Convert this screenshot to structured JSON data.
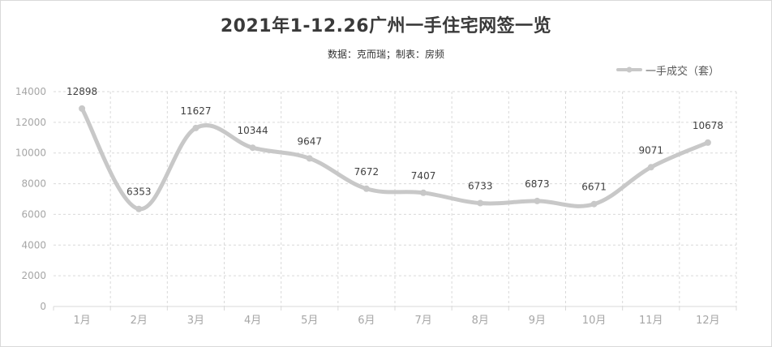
{
  "title": "2021年1-12.26广州一手住宅网签一览",
  "subtitle": "数据：克而瑞；制表：房频",
  "chart_data": {
    "type": "line",
    "categories": [
      "1月",
      "2月",
      "3月",
      "4月",
      "5月",
      "6月",
      "7月",
      "8月",
      "9月",
      "10月",
      "11月",
      "12月"
    ],
    "series": [
      {
        "name": "一手成交（套）",
        "values": [
          12898,
          6353,
          11627,
          10344,
          9647,
          7672,
          7407,
          6733,
          6873,
          6671,
          9071,
          10678
        ]
      }
    ],
    "ylim": [
      0,
      14000
    ],
    "yticks": [
      0,
      2000,
      4000,
      6000,
      8000,
      10000,
      12000,
      14000
    ],
    "grid": true,
    "smooth": true,
    "legend_position": "top-right",
    "line_color": "#c8c8c8"
  }
}
